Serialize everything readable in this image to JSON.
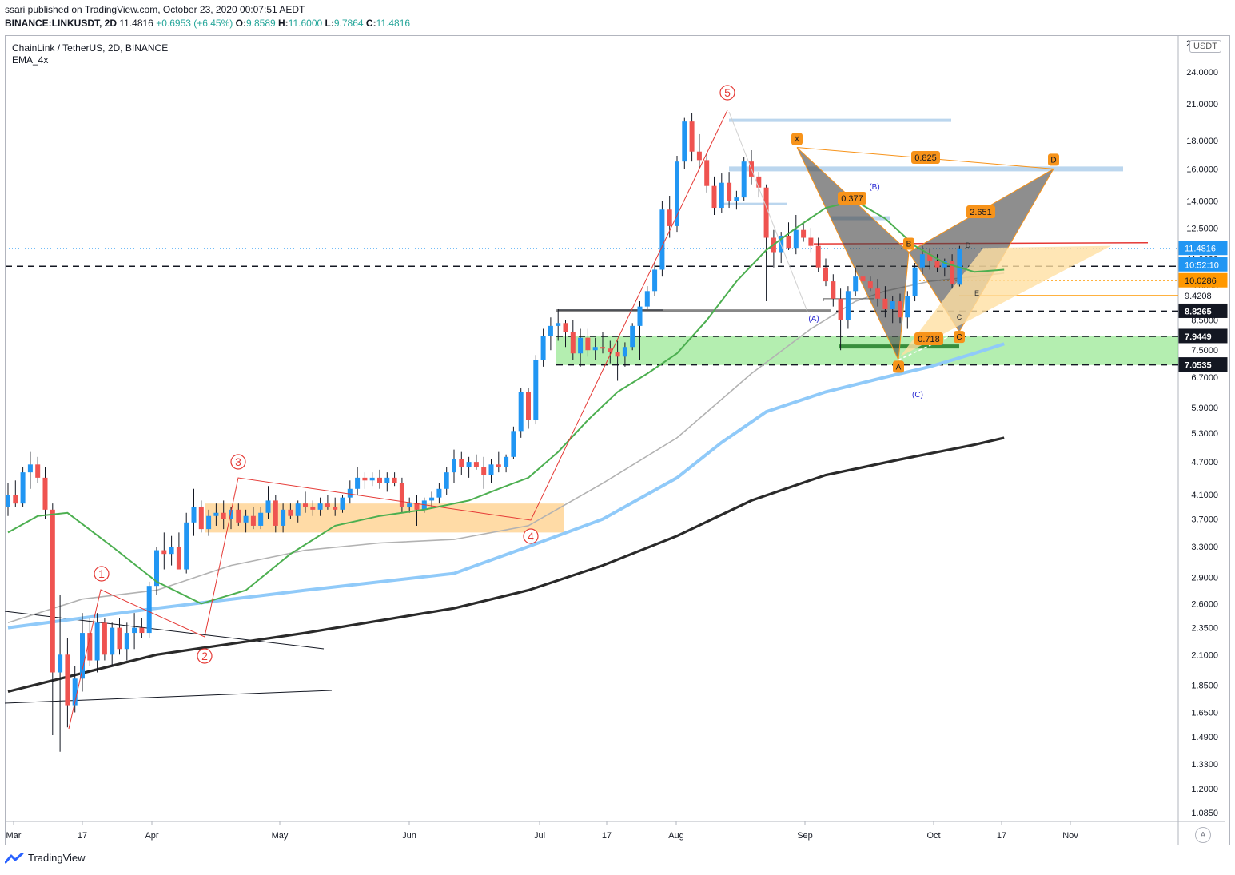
{
  "header": {
    "publish": "ssari published on TradingView.com, October 23, 2020 00:07:51 AEDT",
    "symbol": "BINANCE:LINKUSDT, 2D",
    "last": "11.4816",
    "change": "+0.6953 (+6.45%)",
    "o_label": "O:",
    "o": "9.8589",
    "h_label": "H:",
    "h": "11.6000",
    "l_label": "L:",
    "l": "9.7864",
    "c_label": "C:",
    "c": "11.4816"
  },
  "legend": {
    "title": "ChainLink / TetherUS, 2D, BINANCE",
    "indicator": "EMA_4x"
  },
  "currency_button": "USDT",
  "auto_button": "A",
  "footer": {
    "brand": "TradingView"
  },
  "colors": {
    "up": "#2196f3",
    "down": "#ef5350",
    "ema_green": "#4caf50",
    "ema_grey": "#b2b2b2",
    "ema_lightblue": "#90caf9",
    "ema_black": "#2a2a2a",
    "green_zone": "#76e06f",
    "orange_zone": "#ffcc80",
    "wave_red": "#e53935",
    "pattern_orange": "#f7931a",
    "accent_blue": "#2962ff"
  },
  "chart_data": {
    "type": "candlestick",
    "price_scale": "log",
    "y_ticks": [
      "24.0000",
      "21.0000",
      "18.0000",
      "16.0000",
      "14.0000",
      "12.5000",
      "11.0000",
      "9.8000",
      "8.5000",
      "7.5000",
      "6.7000",
      "5.9000",
      "5.3000",
      "4.7000",
      "4.1000",
      "3.7000",
      "3.3000",
      "2.9000",
      "2.6000",
      "2.3500",
      "2.1000",
      "1.8500",
      "1.6500",
      "1.4900",
      "1.3300",
      "1.2000",
      "1.0850"
    ],
    "y_top_partial": "2",
    "x_ticks": [
      "Mar",
      "17",
      "Apr",
      "May",
      "Jun",
      "Jul",
      "17",
      "Aug",
      "Sep",
      "Oct",
      "17",
      "Nov"
    ],
    "price_labels": [
      {
        "value": 11.4816,
        "text": "11.4816",
        "bg": "#2196f3",
        "color": "#ffffff"
      },
      {
        "value": 10.72,
        "text": "10:52:10",
        "bg": "#2196f3",
        "color": "#ffffff"
      },
      {
        "value": 10.0286,
        "text": "10.0286",
        "bg": "#ff9800",
        "color": "#131722"
      },
      {
        "value": 9.4208,
        "text": "9.4208",
        "bg": "#ffffff",
        "color": "#131722"
      },
      {
        "value": 8.8265,
        "text": "8.8265",
        "bg": "#131722",
        "color": "#ffffff"
      },
      {
        "value": 7.9449,
        "text": "7.9449",
        "bg": "#131722",
        "color": "#ffffff"
      },
      {
        "value": 7.0535,
        "text": "7.0535",
        "bg": "#131722",
        "color": "#ffffff"
      }
    ],
    "wave_labels": [
      "1",
      "2",
      "3",
      "4",
      "5"
    ],
    "pattern_points": [
      "X",
      "A",
      "B",
      "C",
      "D"
    ],
    "ratios": [
      "0.377",
      "0.718",
      "2.651",
      "0.825"
    ],
    "abc_labels": [
      "(A)",
      "(B)",
      "(C)"
    ],
    "small_points": [
      "D",
      "E",
      "C"
    ],
    "candles": [
      {
        "o": 3.9,
        "h": 4.3,
        "l": 3.75,
        "c": 4.1
      },
      {
        "o": 4.1,
        "h": 4.35,
        "l": 3.9,
        "c": 3.95
      },
      {
        "o": 3.95,
        "h": 4.6,
        "l": 3.9,
        "c": 4.5
      },
      {
        "o": 4.5,
        "h": 4.9,
        "l": 4.2,
        "c": 4.65
      },
      {
        "o": 4.65,
        "h": 4.8,
        "l": 4.3,
        "c": 4.4
      },
      {
        "o": 4.4,
        "h": 4.6,
        "l": 3.7,
        "c": 3.85
      },
      {
        "o": 3.85,
        "h": 3.95,
        "l": 1.5,
        "c": 1.95
      },
      {
        "o": 1.95,
        "h": 2.7,
        "l": 1.4,
        "c": 2.1
      },
      {
        "o": 2.1,
        "h": 2.25,
        "l": 1.55,
        "c": 1.7
      },
      {
        "o": 1.7,
        "h": 2.0,
        "l": 1.65,
        "c": 1.9
      },
      {
        "o": 1.9,
        "h": 2.5,
        "l": 1.8,
        "c": 2.3
      },
      {
        "o": 2.3,
        "h": 2.45,
        "l": 2.0,
        "c": 2.05
      },
      {
        "o": 2.05,
        "h": 2.5,
        "l": 1.95,
        "c": 2.4
      },
      {
        "o": 2.4,
        "h": 2.45,
        "l": 2.05,
        "c": 2.1
      },
      {
        "o": 2.1,
        "h": 2.4,
        "l": 2.0,
        "c": 2.35
      },
      {
        "o": 2.35,
        "h": 2.45,
        "l": 2.1,
        "c": 2.15
      },
      {
        "o": 2.15,
        "h": 2.4,
        "l": 2.05,
        "c": 2.3
      },
      {
        "o": 2.3,
        "h": 2.5,
        "l": 2.15,
        "c": 2.35
      },
      {
        "o": 2.35,
        "h": 2.45,
        "l": 2.25,
        "c": 2.3
      },
      {
        "o": 2.3,
        "h": 2.85,
        "l": 2.25,
        "c": 2.8
      },
      {
        "o": 2.8,
        "h": 3.3,
        "l": 2.7,
        "c": 3.25
      },
      {
        "o": 3.25,
        "h": 3.5,
        "l": 3.0,
        "c": 3.2
      },
      {
        "o": 3.2,
        "h": 3.45,
        "l": 3.05,
        "c": 3.3
      },
      {
        "o": 3.3,
        "h": 3.5,
        "l": 3.1,
        "c": 3.0
      },
      {
        "o": 3.0,
        "h": 3.8,
        "l": 2.95,
        "c": 3.65
      },
      {
        "o": 3.65,
        "h": 4.2,
        "l": 3.45,
        "c": 3.9
      },
      {
        "o": 3.9,
        "h": 4.0,
        "l": 3.5,
        "c": 3.55
      },
      {
        "o": 3.55,
        "h": 3.85,
        "l": 3.45,
        "c": 3.75
      },
      {
        "o": 3.75,
        "h": 3.95,
        "l": 3.6,
        "c": 3.8
      },
      {
        "o": 3.8,
        "h": 4.0,
        "l": 3.55,
        "c": 3.7
      },
      {
        "o": 3.7,
        "h": 3.9,
        "l": 3.55,
        "c": 3.85
      },
      {
        "o": 3.85,
        "h": 3.95,
        "l": 3.6,
        "c": 3.65
      },
      {
        "o": 3.65,
        "h": 3.85,
        "l": 3.5,
        "c": 3.75
      },
      {
        "o": 3.75,
        "h": 3.9,
        "l": 3.55,
        "c": 3.6
      },
      {
        "o": 3.6,
        "h": 3.9,
        "l": 3.55,
        "c": 3.8
      },
      {
        "o": 3.8,
        "h": 4.25,
        "l": 3.7,
        "c": 4.0
      },
      {
        "o": 4.0,
        "h": 4.1,
        "l": 3.5,
        "c": 3.6
      },
      {
        "o": 3.6,
        "h": 3.95,
        "l": 3.5,
        "c": 3.85
      },
      {
        "o": 3.85,
        "h": 3.95,
        "l": 3.7,
        "c": 3.75
      },
      {
        "o": 3.75,
        "h": 4.0,
        "l": 3.65,
        "c": 3.95
      },
      {
        "o": 3.95,
        "h": 4.15,
        "l": 3.8,
        "c": 3.9
      },
      {
        "o": 3.9,
        "h": 4.0,
        "l": 3.75,
        "c": 3.85
      },
      {
        "o": 3.85,
        "h": 4.05,
        "l": 3.75,
        "c": 3.95
      },
      {
        "o": 3.95,
        "h": 4.1,
        "l": 3.85,
        "c": 3.9
      },
      {
        "o": 3.9,
        "h": 4.05,
        "l": 3.75,
        "c": 3.85
      },
      {
        "o": 3.85,
        "h": 4.1,
        "l": 3.8,
        "c": 4.05
      },
      {
        "o": 4.05,
        "h": 4.35,
        "l": 3.95,
        "c": 4.2
      },
      {
        "o": 4.2,
        "h": 4.6,
        "l": 4.1,
        "c": 4.4
      },
      {
        "o": 4.4,
        "h": 4.5,
        "l": 4.2,
        "c": 4.35
      },
      {
        "o": 4.35,
        "h": 4.5,
        "l": 4.25,
        "c": 4.4
      },
      {
        "o": 4.4,
        "h": 4.55,
        "l": 4.2,
        "c": 4.3
      },
      {
        "o": 4.3,
        "h": 4.5,
        "l": 4.15,
        "c": 4.4
      },
      {
        "o": 4.4,
        "h": 4.5,
        "l": 4.25,
        "c": 4.3
      },
      {
        "o": 4.3,
        "h": 4.4,
        "l": 3.8,
        "c": 3.9
      },
      {
        "o": 3.9,
        "h": 4.05,
        "l": 3.8,
        "c": 3.95
      },
      {
        "o": 3.95,
        "h": 4.1,
        "l": 3.6,
        "c": 3.85
      },
      {
        "o": 3.85,
        "h": 4.05,
        "l": 3.8,
        "c": 4.0
      },
      {
        "o": 4.0,
        "h": 4.15,
        "l": 3.9,
        "c": 4.05
      },
      {
        "o": 4.05,
        "h": 4.3,
        "l": 3.95,
        "c": 4.2
      },
      {
        "o": 4.2,
        "h": 4.6,
        "l": 4.1,
        "c": 4.5
      },
      {
        "o": 4.5,
        "h": 4.95,
        "l": 4.3,
        "c": 4.75
      },
      {
        "o": 4.75,
        "h": 4.9,
        "l": 4.45,
        "c": 4.6
      },
      {
        "o": 4.6,
        "h": 4.8,
        "l": 4.4,
        "c": 4.7
      },
      {
        "o": 4.7,
        "h": 4.85,
        "l": 4.55,
        "c": 4.6
      },
      {
        "o": 4.6,
        "h": 4.8,
        "l": 4.2,
        "c": 4.45
      },
      {
        "o": 4.45,
        "h": 4.75,
        "l": 4.3,
        "c": 4.65
      },
      {
        "o": 4.65,
        "h": 4.9,
        "l": 4.5,
        "c": 4.6
      },
      {
        "o": 4.6,
        "h": 4.85,
        "l": 4.5,
        "c": 4.8
      },
      {
        "o": 4.8,
        "h": 5.45,
        "l": 4.75,
        "c": 5.35
      },
      {
        "o": 5.35,
        "h": 6.4,
        "l": 5.2,
        "c": 6.3
      },
      {
        "o": 6.3,
        "h": 6.4,
        "l": 5.4,
        "c": 5.6
      },
      {
        "o": 5.6,
        "h": 7.35,
        "l": 5.5,
        "c": 7.2
      },
      {
        "o": 7.2,
        "h": 8.2,
        "l": 7.0,
        "c": 7.95
      },
      {
        "o": 7.95,
        "h": 8.6,
        "l": 7.5,
        "c": 8.3
      },
      {
        "o": 8.3,
        "h": 8.9,
        "l": 7.8,
        "c": 8.4
      },
      {
        "o": 8.4,
        "h": 8.5,
        "l": 7.6,
        "c": 8.1
      },
      {
        "o": 8.1,
        "h": 8.5,
        "l": 7.2,
        "c": 7.4
      },
      {
        "o": 7.4,
        "h": 8.2,
        "l": 7.0,
        "c": 7.9
      },
      {
        "o": 7.9,
        "h": 8.2,
        "l": 7.3,
        "c": 7.5
      },
      {
        "o": 7.5,
        "h": 7.9,
        "l": 7.2,
        "c": 7.6
      },
      {
        "o": 7.6,
        "h": 8.1,
        "l": 7.4,
        "c": 7.55
      },
      {
        "o": 7.55,
        "h": 7.8,
        "l": 7.1,
        "c": 7.45
      },
      {
        "o": 7.45,
        "h": 7.8,
        "l": 6.6,
        "c": 7.3
      },
      {
        "o": 7.3,
        "h": 7.75,
        "l": 7.0,
        "c": 7.6
      },
      {
        "o": 7.6,
        "h": 8.4,
        "l": 7.5,
        "c": 8.3
      },
      {
        "o": 8.3,
        "h": 9.2,
        "l": 7.2,
        "c": 9.0
      },
      {
        "o": 9.0,
        "h": 9.8,
        "l": 8.9,
        "c": 9.6
      },
      {
        "o": 9.6,
        "h": 10.8,
        "l": 9.4,
        "c": 10.5
      },
      {
        "o": 10.5,
        "h": 14.0,
        "l": 10.2,
        "c": 13.5
      },
      {
        "o": 13.5,
        "h": 14.3,
        "l": 12.0,
        "c": 12.6
      },
      {
        "o": 12.6,
        "h": 16.9,
        "l": 12.3,
        "c": 16.5
      },
      {
        "o": 16.5,
        "h": 19.8,
        "l": 16.0,
        "c": 19.5
      },
      {
        "o": 19.5,
        "h": 20.2,
        "l": 16.5,
        "c": 17.2
      },
      {
        "o": 17.2,
        "h": 18.5,
        "l": 16.0,
        "c": 16.6
      },
      {
        "o": 16.6,
        "h": 17.0,
        "l": 14.5,
        "c": 14.9
      },
      {
        "o": 14.9,
        "h": 15.5,
        "l": 13.2,
        "c": 13.6
      },
      {
        "o": 13.6,
        "h": 15.7,
        "l": 13.3,
        "c": 15.1
      },
      {
        "o": 15.1,
        "h": 15.8,
        "l": 13.6,
        "c": 14.0
      },
      {
        "o": 14.0,
        "h": 14.6,
        "l": 13.5,
        "c": 14.2
      },
      {
        "o": 14.2,
        "h": 16.8,
        "l": 14.0,
        "c": 16.5
      },
      {
        "o": 16.5,
        "h": 17.3,
        "l": 15.0,
        "c": 15.5
      },
      {
        "o": 15.5,
        "h": 15.8,
        "l": 14.2,
        "c": 14.8
      },
      {
        "o": 14.8,
        "h": 15.0,
        "l": 9.2,
        "c": 12.0
      },
      {
        "o": 12.0,
        "h": 12.4,
        "l": 10.6,
        "c": 11.3
      },
      {
        "o": 11.3,
        "h": 12.3,
        "l": 10.8,
        "c": 12.1
      },
      {
        "o": 12.1,
        "h": 12.8,
        "l": 11.4,
        "c": 11.5
      },
      {
        "o": 11.5,
        "h": 13.2,
        "l": 11.2,
        "c": 12.4
      },
      {
        "o": 12.4,
        "h": 12.8,
        "l": 11.8,
        "c": 12.0
      },
      {
        "o": 12.0,
        "h": 12.5,
        "l": 11.3,
        "c": 11.6
      },
      {
        "o": 11.6,
        "h": 12.0,
        "l": 10.4,
        "c": 10.6
      },
      {
        "o": 10.6,
        "h": 11.0,
        "l": 9.8,
        "c": 10.0
      },
      {
        "o": 10.0,
        "h": 10.3,
        "l": 9.0,
        "c": 9.3
      },
      {
        "o": 9.3,
        "h": 9.7,
        "l": 7.5,
        "c": 8.5
      },
      {
        "o": 8.5,
        "h": 9.8,
        "l": 8.2,
        "c": 9.6
      },
      {
        "o": 9.6,
        "h": 10.6,
        "l": 9.4,
        "c": 10.2
      },
      {
        "o": 10.2,
        "h": 10.8,
        "l": 9.8,
        "c": 10.0
      },
      {
        "o": 10.0,
        "h": 10.2,
        "l": 9.6,
        "c": 9.7
      },
      {
        "o": 9.7,
        "h": 10.1,
        "l": 9.0,
        "c": 9.3
      },
      {
        "o": 9.3,
        "h": 9.8,
        "l": 8.6,
        "c": 8.9
      },
      {
        "o": 8.9,
        "h": 9.4,
        "l": 8.4,
        "c": 9.2
      },
      {
        "o": 9.2,
        "h": 9.5,
        "l": 8.4,
        "c": 8.6
      },
      {
        "o": 8.6,
        "h": 9.6,
        "l": 8.2,
        "c": 9.4
      },
      {
        "o": 9.4,
        "h": 10.8,
        "l": 9.2,
        "c": 10.6
      },
      {
        "o": 10.6,
        "h": 11.6,
        "l": 10.3,
        "c": 11.2
      },
      {
        "o": 11.2,
        "h": 11.5,
        "l": 10.5,
        "c": 10.9
      },
      {
        "o": 10.9,
        "h": 11.2,
        "l": 10.4,
        "c": 10.6
      },
      {
        "o": 10.6,
        "h": 11.0,
        "l": 10.2,
        "c": 10.9
      },
      {
        "o": 10.9,
        "h": 11.2,
        "l": 9.7,
        "c": 9.9
      },
      {
        "o": 9.8589,
        "h": 11.6,
        "l": 9.7864,
        "c": 11.4816
      }
    ],
    "ema_green": [
      [
        0,
        3.5
      ],
      [
        4,
        3.75
      ],
      [
        8,
        3.8
      ],
      [
        14,
        3.3
      ],
      [
        20,
        2.85
      ],
      [
        26,
        2.6
      ],
      [
        32,
        2.75
      ],
      [
        38,
        3.2
      ],
      [
        44,
        3.6
      ],
      [
        50,
        3.75
      ],
      [
        56,
        3.85
      ],
      [
        62,
        4.0
      ],
      [
        66,
        4.2
      ],
      [
        70,
        4.4
      ],
      [
        74,
        4.9
      ],
      [
        78,
        5.6
      ],
      [
        82,
        6.3
      ],
      [
        86,
        6.8
      ],
      [
        90,
        7.4
      ],
      [
        94,
        8.5
      ],
      [
        98,
        10.0
      ],
      [
        102,
        11.4
      ],
      [
        106,
        12.5
      ],
      [
        110,
        13.6
      ],
      [
        114,
        14.0
      ],
      [
        118,
        13.0
      ],
      [
        122,
        11.6
      ],
      [
        126,
        10.8
      ],
      [
        130,
        10.4
      ],
      [
        134,
        10.5
      ]
    ],
    "ema_grey": [
      [
        0,
        2.4
      ],
      [
        10,
        2.65
      ],
      [
        20,
        2.75
      ],
      [
        30,
        3.05
      ],
      [
        40,
        3.25
      ],
      [
        50,
        3.35
      ],
      [
        60,
        3.4
      ],
      [
        70,
        3.6
      ],
      [
        80,
        4.3
      ],
      [
        90,
        5.2
      ],
      [
        100,
        6.8
      ],
      [
        108,
        8.2
      ],
      [
        114,
        9.2
      ],
      [
        118,
        9.6
      ],
      [
        124,
        10.0
      ],
      [
        130,
        10.2
      ],
      [
        134,
        10.35
      ]
    ],
    "ema_lightblue": [
      [
        0,
        2.35
      ],
      [
        20,
        2.55
      ],
      [
        40,
        2.75
      ],
      [
        60,
        2.95
      ],
      [
        70,
        3.3
      ],
      [
        80,
        3.7
      ],
      [
        90,
        4.4
      ],
      [
        96,
        5.1
      ],
      [
        102,
        5.8
      ],
      [
        110,
        6.3
      ],
      [
        118,
        6.7
      ],
      [
        124,
        7.0
      ],
      [
        130,
        7.4
      ],
      [
        134,
        7.7
      ]
    ],
    "ema_black": [
      [
        0,
        1.8
      ],
      [
        20,
        2.1
      ],
      [
        40,
        2.3
      ],
      [
        60,
        2.55
      ],
      [
        70,
        2.75
      ],
      [
        80,
        3.05
      ],
      [
        90,
        3.45
      ],
      [
        100,
        4.0
      ],
      [
        110,
        4.45
      ],
      [
        120,
        4.75
      ],
      [
        130,
        5.05
      ],
      [
        134,
        5.2
      ]
    ]
  }
}
